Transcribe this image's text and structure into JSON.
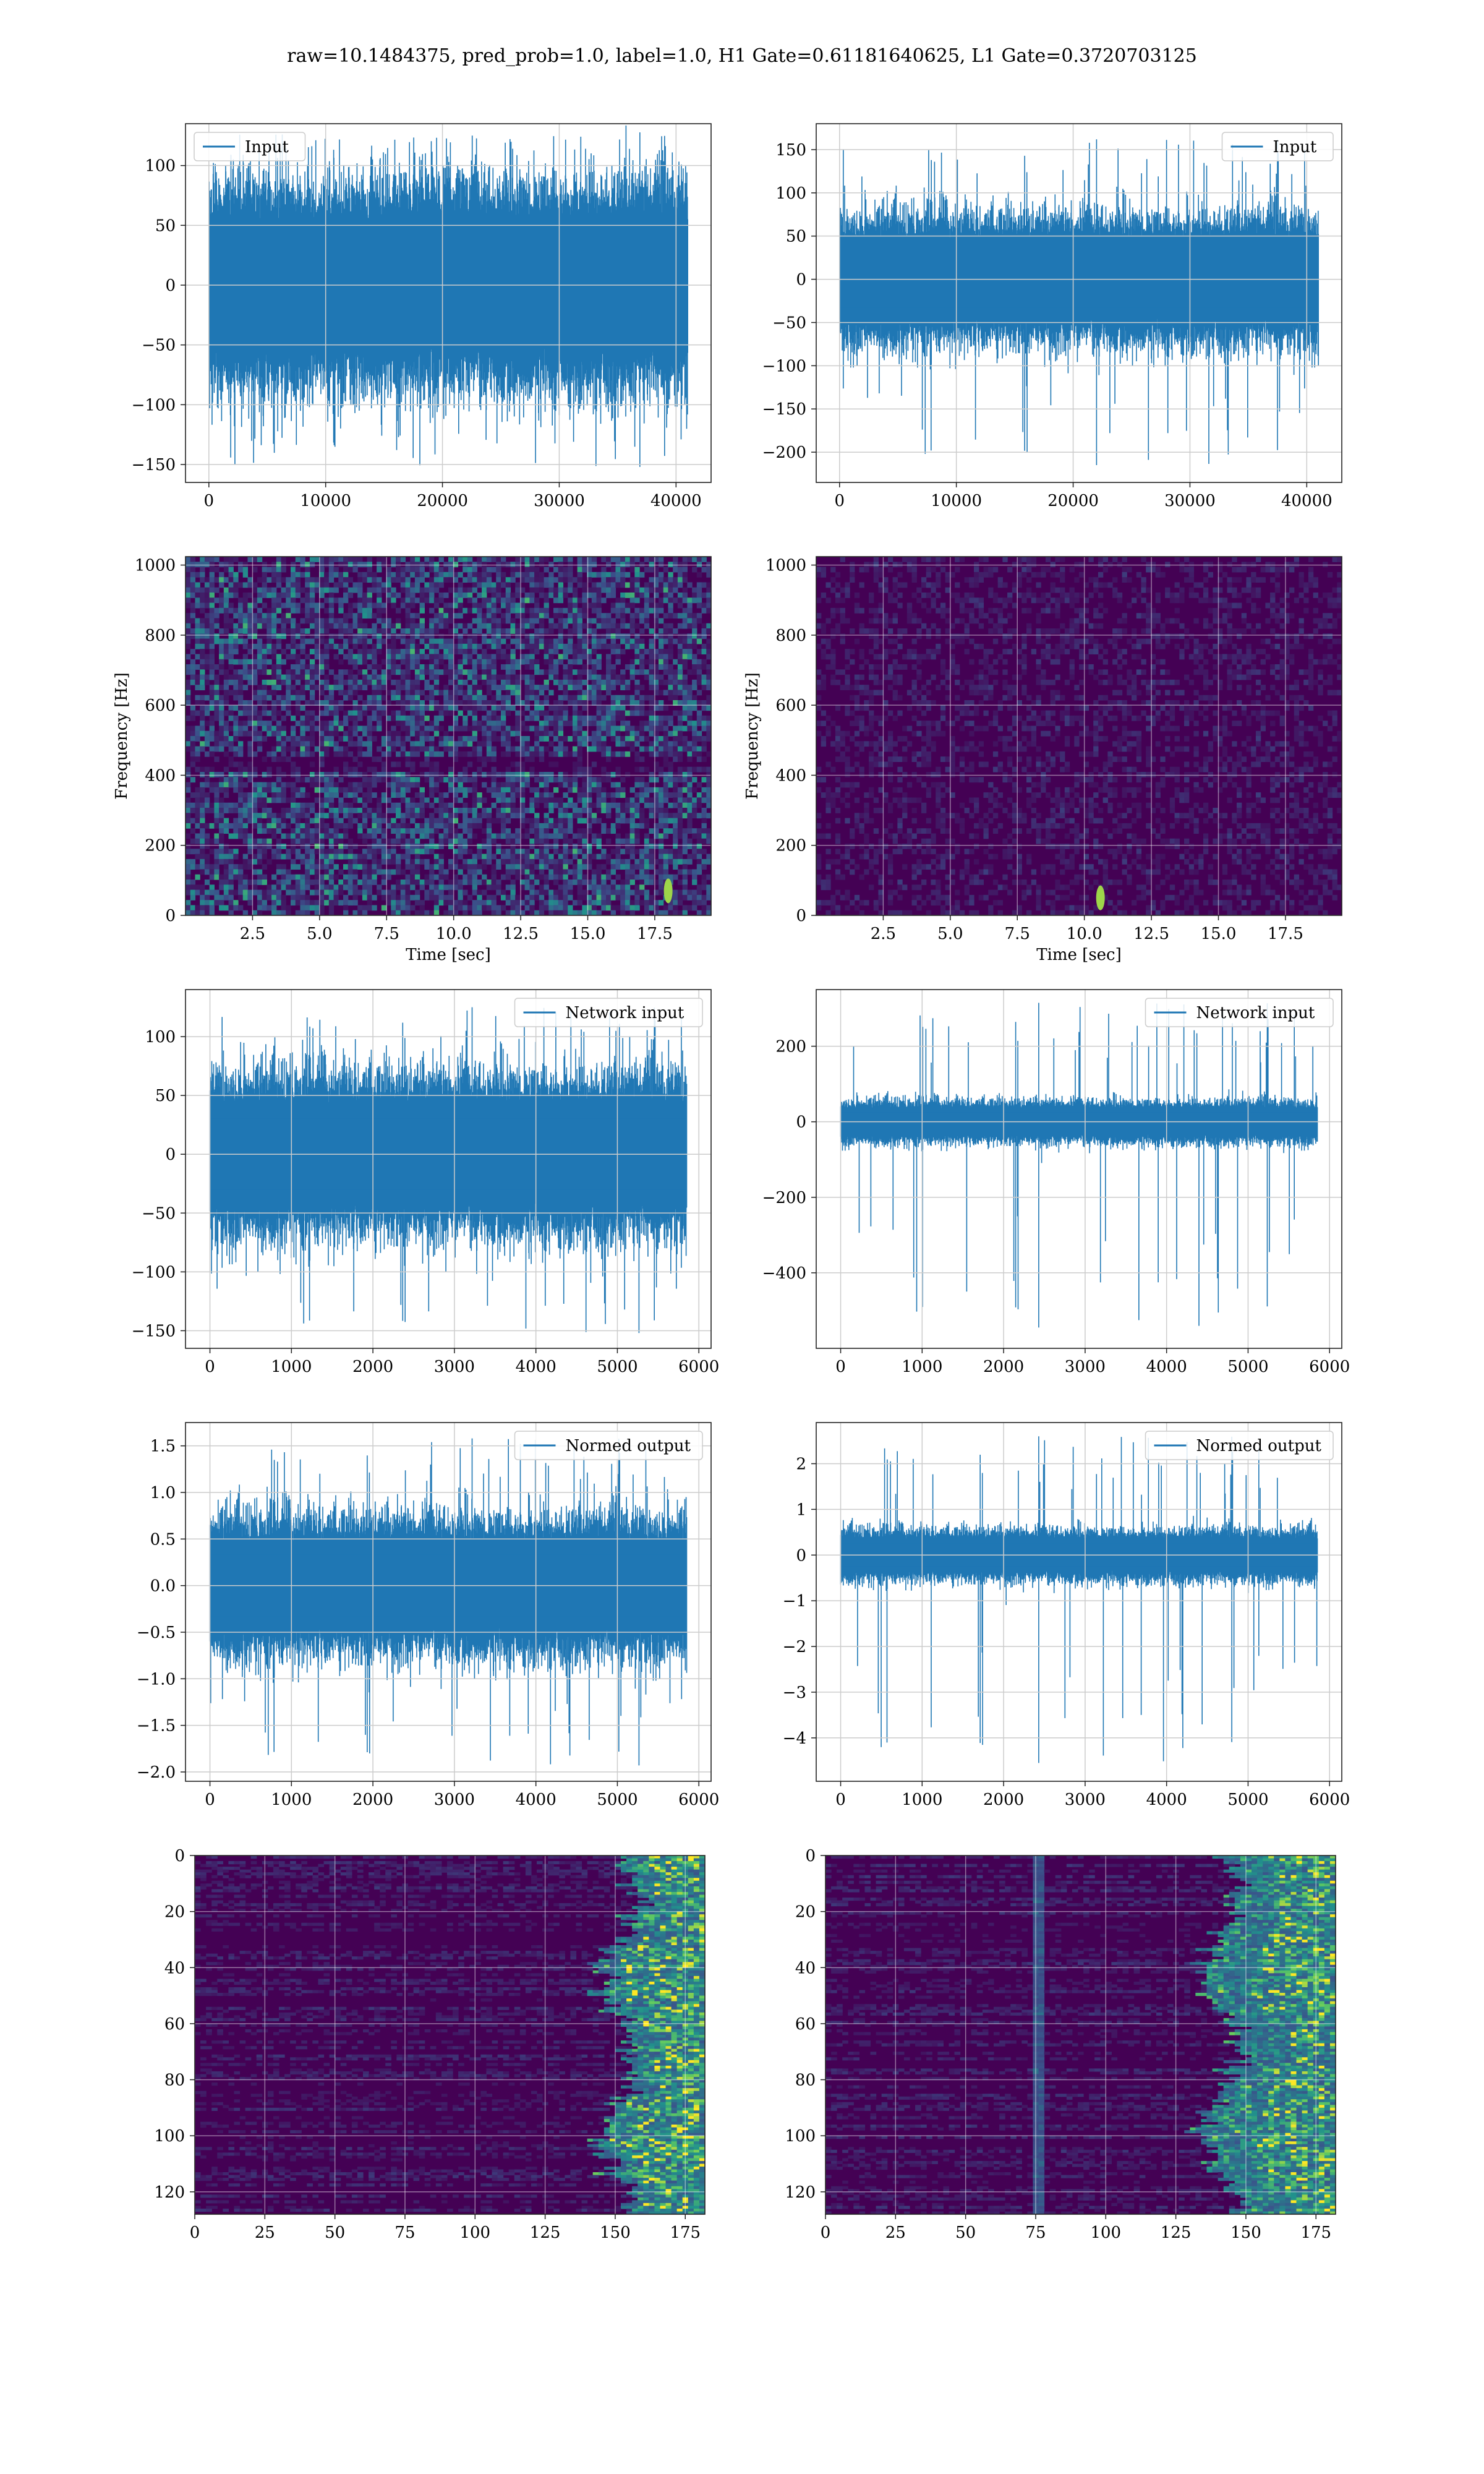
{
  "figure": {
    "suptitle": "raw=10.1484375, pred_prob=1.0, label=1.0, H1 Gate=0.61181640625, L1 Gate=0.3720703125",
    "colors": {
      "series": "#1f77b4",
      "viridis_low": "#440154",
      "grid": "#cccccc"
    }
  },
  "chart_data": [
    {
      "id": "h1-input",
      "type": "line",
      "title": "",
      "series": [
        {
          "name": "Input",
          "envelope_upper": 70,
          "envelope_lower": -70,
          "peak_high": 125,
          "peak_low": -152,
          "length": 41000
        }
      ],
      "xlim": [
        -2000,
        43000
      ],
      "ylim": [
        -165,
        135
      ],
      "xticks": [
        0,
        10000,
        20000,
        30000,
        40000
      ],
      "yticks": [
        -150,
        -100,
        -50,
        0,
        50,
        100
      ],
      "legend": "upper left",
      "grid": true,
      "xlabel": "",
      "ylabel": ""
    },
    {
      "id": "l1-input",
      "type": "line",
      "title": "",
      "series": [
        {
          "name": "Input",
          "envelope_upper": 60,
          "envelope_lower": -60,
          "peak_high": 162,
          "peak_low": -215,
          "spike_x": 22000,
          "length": 41000
        }
      ],
      "xlim": [
        -2000,
        43000
      ],
      "ylim": [
        -235,
        180
      ],
      "xticks": [
        0,
        10000,
        20000,
        30000,
        40000
      ],
      "yticks": [
        -200,
        -150,
        -100,
        -50,
        0,
        50,
        100,
        150
      ],
      "legend": "upper right",
      "grid": true,
      "xlabel": "",
      "ylabel": ""
    },
    {
      "id": "h1-spectrogram",
      "type": "heatmap",
      "title": "",
      "xlabel": "Time [sec]",
      "ylabel": "Frequency [Hz]",
      "xlim": [
        0,
        19.6
      ],
      "ylim": [
        0,
        1024
      ],
      "xticks": [
        "2.5",
        "5.0",
        "7.5",
        "10.0",
        "12.5",
        "15.0",
        "17.5"
      ],
      "yticks": [
        0,
        200,
        400,
        600,
        800,
        1000
      ],
      "colormap": "viridis",
      "grid": true,
      "intensity": "high-noise",
      "bright_spot": [
        18,
        70
      ]
    },
    {
      "id": "l1-spectrogram",
      "type": "heatmap",
      "title": "",
      "xlabel": "Time [sec]",
      "ylabel": "Frequency [Hz]",
      "xlim": [
        0,
        19.6
      ],
      "ylim": [
        0,
        1024
      ],
      "xticks": [
        "2.5",
        "5.0",
        "7.5",
        "10.0",
        "12.5",
        "15.0",
        "17.5"
      ],
      "yticks": [
        0,
        200,
        400,
        600,
        800,
        1000
      ],
      "colormap": "viridis",
      "grid": true,
      "intensity": "low-noise",
      "bright_spot": [
        10.6,
        50
      ]
    },
    {
      "id": "h1-network-input",
      "type": "line",
      "title": "",
      "series": [
        {
          "name": "Network input",
          "envelope_upper": 55,
          "envelope_lower": -55,
          "peak_high": 125,
          "peak_low": -152,
          "length": 5850
        }
      ],
      "xlim": [
        -300,
        6150
      ],
      "ylim": [
        -165,
        140
      ],
      "xticks": [
        0,
        1000,
        2000,
        3000,
        4000,
        5000,
        6000
      ],
      "yticks": [
        -150,
        -100,
        -50,
        0,
        50,
        100
      ],
      "legend": "upper right",
      "grid": true,
      "xlabel": "",
      "ylabel": ""
    },
    {
      "id": "l1-network-input",
      "type": "line",
      "title": "",
      "series": [
        {
          "name": "Network input",
          "envelope_upper": 45,
          "envelope_lower": -45,
          "peak_high": 315,
          "peak_low": -545,
          "spike_x": 2430,
          "length": 5850
        }
      ],
      "xlim": [
        -300,
        6150
      ],
      "ylim": [
        -600,
        350
      ],
      "xticks": [
        0,
        1000,
        2000,
        3000,
        4000,
        5000,
        6000
      ],
      "yticks": [
        -400,
        -200,
        0,
        200
      ],
      "legend": "upper right",
      "grid": true,
      "xlabel": "",
      "ylabel": ""
    },
    {
      "id": "h1-normed-output",
      "type": "line",
      "title": "",
      "series": [
        {
          "name": "Normed output",
          "envelope_upper": 0.6,
          "envelope_lower": -0.6,
          "peak_high": 1.58,
          "peak_low": -1.93,
          "length": 5850
        }
      ],
      "xlim": [
        -300,
        6150
      ],
      "ylim": [
        -2.1,
        1.75
      ],
      "xticks": [
        0,
        1000,
        2000,
        3000,
        4000,
        5000,
        6000
      ],
      "yticks": [
        "−2.0",
        "−1.5",
        "−1.0",
        "−0.5",
        "0.0",
        "0.5",
        "1.0",
        "1.5"
      ],
      "ytick_values": [
        -2.0,
        -1.5,
        -1.0,
        -0.5,
        0.0,
        0.5,
        1.0,
        1.5
      ],
      "legend": "upper right",
      "grid": true,
      "xlabel": "",
      "ylabel": ""
    },
    {
      "id": "l1-normed-output",
      "type": "line",
      "title": "",
      "series": [
        {
          "name": "Normed output",
          "envelope_upper": 0.45,
          "envelope_lower": -0.45,
          "peak_high": 2.6,
          "peak_low": -4.55,
          "spike_x": 2430,
          "length": 5850
        }
      ],
      "xlim": [
        -300,
        6150
      ],
      "ylim": [
        -4.95,
        2.9
      ],
      "xticks": [
        0,
        1000,
        2000,
        3000,
        4000,
        5000,
        6000
      ],
      "yticks": [
        "−4",
        "−3",
        "−2",
        "−1",
        "0",
        "1",
        "2"
      ],
      "ytick_values": [
        -4,
        -3,
        -2,
        -1,
        0,
        1,
        2
      ],
      "legend": "upper right",
      "grid": true,
      "xlabel": "",
      "ylabel": ""
    },
    {
      "id": "h1-feature-map",
      "type": "heatmap",
      "title": "",
      "xlim": [
        0,
        182
      ],
      "ylim": [
        128,
        0
      ],
      "xticks": [
        0,
        25,
        50,
        75,
        100,
        125,
        150,
        175
      ],
      "yticks": [
        0,
        20,
        40,
        60,
        80,
        100,
        120
      ],
      "colormap": "viridis",
      "grid": true,
      "active_band": [
        150,
        180
      ],
      "xlabel": "",
      "ylabel": ""
    },
    {
      "id": "l1-feature-map",
      "type": "heatmap",
      "title": "",
      "xlim": [
        0,
        182
      ],
      "ylim": [
        128,
        0
      ],
      "xticks": [
        0,
        25,
        50,
        75,
        100,
        125,
        150,
        175
      ],
      "yticks": [
        0,
        20,
        40,
        60,
        80,
        100,
        120
      ],
      "colormap": "viridis",
      "grid": true,
      "active_band": [
        140,
        182
      ],
      "vertical_line": 75,
      "xlabel": "",
      "ylabel": ""
    }
  ]
}
